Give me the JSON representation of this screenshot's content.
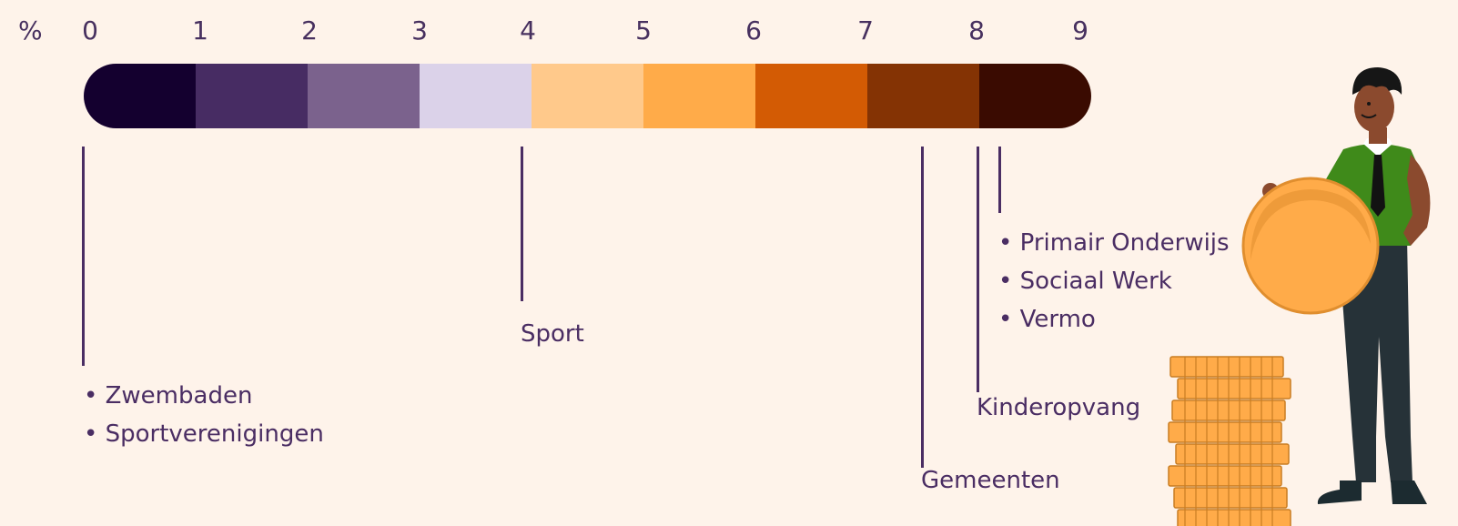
{
  "scale": {
    "unit": "%",
    "ticks": [
      "0",
      "1",
      "2",
      "3",
      "4",
      "5",
      "6",
      "7",
      "8",
      "9"
    ],
    "band_colors": [
      "#14002f",
      "#472c63",
      "#7b628d",
      "#dbd2e9",
      "#ffc98b",
      "#ffab49",
      "#d35b04",
      "#843304",
      "#3a0b01"
    ]
  },
  "sectors": [
    {
      "label": "Zwembaden",
      "value": 0
    },
    {
      "label": "Sportverenigingen",
      "value": 0
    },
    {
      "label": "Sport",
      "value": 3.9
    },
    {
      "label": "Gemeenten",
      "value": 7.5
    },
    {
      "label": "Kinderopvang",
      "value": 8.0
    },
    {
      "label": "Primair Onderwijs",
      "value": 8.2
    },
    {
      "label": "Sociaal Werk",
      "value": 8.2
    },
    {
      "label": "Vermo",
      "value": 8.2
    }
  ],
  "groups": {
    "left_list": [
      "Zwembaden",
      "Sportverenigingen"
    ],
    "sport": "Sport",
    "gemeenten": "Gemeenten",
    "kinderopvang": "Kinderopvang",
    "right_list": [
      "Primair Onderwijs",
      "Sociaal Werk",
      "Vermo"
    ]
  },
  "illustration": {
    "name": "person-with-coin-illustration",
    "colors": {
      "shirt": "#3f8a1a",
      "trousers": "#263238",
      "coin": "#ffab49",
      "skin": "#8b4a2e"
    }
  }
}
